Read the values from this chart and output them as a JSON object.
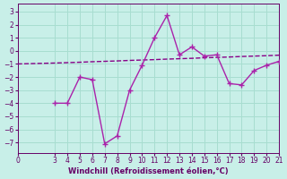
{
  "xlabel": "Windchill (Refroidissement éolien,°C)",
  "bg_color": "#c8efe8",
  "line_color_dash": "#880088",
  "line_color_solid": "#aa22aa",
  "x_ticks": [
    0,
    3,
    4,
    5,
    6,
    7,
    8,
    9,
    10,
    11,
    12,
    13,
    14,
    15,
    16,
    17,
    18,
    19,
    20,
    21
  ],
  "ylim": [
    -7.8,
    3.6
  ],
  "xlim": [
    0,
    21
  ],
  "yticks": [
    3,
    2,
    1,
    0,
    -1,
    -2,
    -3,
    -4,
    -5,
    -6,
    -7
  ],
  "dashed_x": [
    0,
    3,
    4,
    5,
    6,
    7,
    8,
    9,
    10,
    11,
    12,
    13,
    14,
    15,
    16,
    17,
    18,
    19,
    20,
    21
  ],
  "dashed_y": [
    -1.0,
    -0.93,
    -0.9,
    -0.87,
    -0.83,
    -0.8,
    -0.77,
    -0.73,
    -0.7,
    -0.67,
    -0.63,
    -0.6,
    -0.57,
    -0.53,
    -0.5,
    -0.47,
    -0.43,
    -0.4,
    -0.37,
    -0.33
  ],
  "solid_x": [
    3,
    4,
    5,
    6,
    7,
    8,
    9,
    10,
    11,
    12,
    13,
    14,
    15,
    16,
    17,
    18,
    19,
    20,
    21
  ],
  "solid_y": [
    -4.0,
    -4.0,
    -2.0,
    -2.2,
    -7.1,
    -6.5,
    -3.0,
    -1.1,
    1.0,
    2.7,
    -0.3,
    0.3,
    -0.4,
    -0.3,
    -2.5,
    -2.6,
    -1.5,
    -1.1,
    -0.8
  ],
  "grid_color": "#a8ddd0",
  "tick_color": "#660066",
  "font_color": "#660066"
}
